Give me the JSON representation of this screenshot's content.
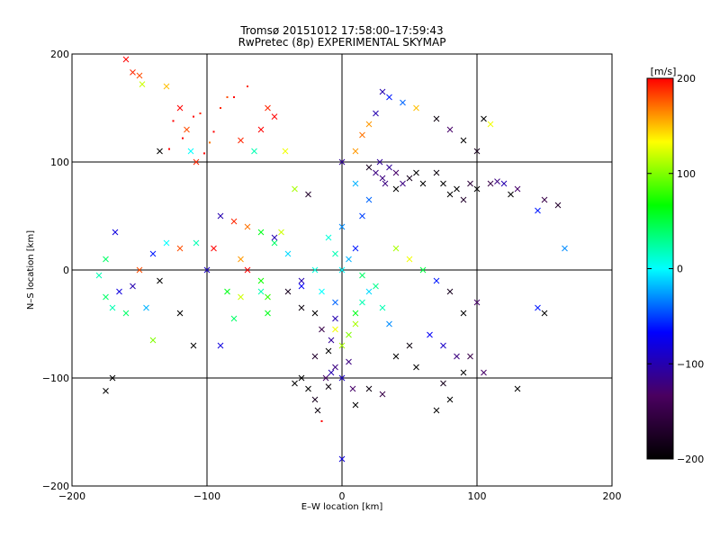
{
  "chart_data": {
    "type": "scatter",
    "title": "Tromsø 20151012  17:58:00–17:59:43",
    "subtitle": "RwPretec (8p) EXPERIMENTAL SKYMAP",
    "xlabel": "E–W location [km]",
    "ylabel": "N–S location [km]",
    "xlim": [
      -200,
      200
    ],
    "ylim": [
      -200,
      200
    ],
    "x_ticks": [
      -200,
      -100,
      0,
      100,
      200
    ],
    "y_ticks": [
      -200,
      -100,
      0,
      100,
      200
    ],
    "grid": true,
    "colorbar": {
      "label": "[m/s]",
      "range": [
        -200,
        200
      ],
      "ticks": [
        200,
        100,
        0,
        -100,
        -200
      ],
      "colormap": [
        "#000000",
        "#4a0060",
        "#0000ff",
        "#00ffff",
        "#00ff00",
        "#ffff00",
        "#ff0000"
      ]
    },
    "points": [
      [
        -160,
        195,
        200,
        "x"
      ],
      [
        -155,
        183,
        190,
        "x"
      ],
      [
        -150,
        180,
        180,
        "x"
      ],
      [
        -148,
        172,
        120,
        "x"
      ],
      [
        -130,
        170,
        150,
        "x"
      ],
      [
        -120,
        150,
        200,
        "x"
      ],
      [
        -115,
        130,
        180,
        "x"
      ],
      [
        -112,
        110,
        0,
        "x"
      ],
      [
        -108,
        100,
        190,
        "x"
      ],
      [
        -135,
        110,
        -200,
        "x"
      ],
      [
        -105,
        145,
        190,
        "."
      ],
      [
        -98,
        118,
        170,
        "."
      ],
      [
        -125,
        138,
        200,
        "."
      ],
      [
        -118,
        122,
        200,
        "."
      ],
      [
        -110,
        142,
        200,
        "."
      ],
      [
        -102,
        108,
        200,
        "."
      ],
      [
        -128,
        112,
        200,
        "."
      ],
      [
        -95,
        128,
        200,
        "."
      ],
      [
        -90,
        150,
        190,
        "."
      ],
      [
        -85,
        160,
        180,
        "."
      ],
      [
        -75,
        120,
        190,
        "x"
      ],
      [
        -60,
        130,
        200,
        "x"
      ],
      [
        -55,
        150,
        190,
        "x"
      ],
      [
        -50,
        142,
        200,
        "x"
      ],
      [
        -42,
        110,
        130,
        "x"
      ],
      [
        -35,
        75,
        110,
        "x"
      ],
      [
        -25,
        70,
        -170,
        "x"
      ],
      [
        -65,
        110,
        20,
        "x"
      ],
      [
        -80,
        160,
        200,
        "."
      ],
      [
        -70,
        170,
        190,
        "."
      ],
      [
        -90,
        50,
        -100,
        "x"
      ],
      [
        -80,
        45,
        190,
        "x"
      ],
      [
        -70,
        40,
        170,
        "x"
      ],
      [
        -60,
        35,
        60,
        "x"
      ],
      [
        -50,
        25,
        40,
        "x"
      ],
      [
        -40,
        15,
        -10,
        "x"
      ],
      [
        -45,
        35,
        120,
        "x"
      ],
      [
        -95,
        20,
        200,
        "x"
      ],
      [
        -100,
        0,
        -90,
        "x"
      ],
      [
        -108,
        25,
        20,
        "x"
      ],
      [
        -120,
        20,
        180,
        "x"
      ],
      [
        -130,
        25,
        0,
        "x"
      ],
      [
        -140,
        15,
        -60,
        "x"
      ],
      [
        -150,
        0,
        180,
        "x"
      ],
      [
        -155,
        -15,
        -100,
        "x"
      ],
      [
        -165,
        -20,
        -80,
        "x"
      ],
      [
        -175,
        10,
        40,
        "x"
      ],
      [
        -168,
        35,
        -80,
        "x"
      ],
      [
        -180,
        -5,
        20,
        "x"
      ],
      [
        -175,
        -25,
        40,
        "x"
      ],
      [
        -170,
        -35,
        20,
        "x"
      ],
      [
        -160,
        -40,
        40,
        "x"
      ],
      [
        -145,
        -35,
        -20,
        "x"
      ],
      [
        -140,
        -65,
        100,
        "x"
      ],
      [
        -120,
        -40,
        -200,
        "x"
      ],
      [
        -110,
        -70,
        -200,
        "x"
      ],
      [
        -90,
        -70,
        -80,
        "x"
      ],
      [
        -75,
        -25,
        120,
        "x"
      ],
      [
        -80,
        -45,
        40,
        "x"
      ],
      [
        -170,
        -100,
        -200,
        "x"
      ],
      [
        -175,
        -112,
        -200,
        "x"
      ],
      [
        -135,
        -10,
        -200,
        "x"
      ],
      [
        -60,
        -20,
        20,
        "x"
      ],
      [
        -55,
        -40,
        60,
        "x"
      ],
      [
        -30,
        -10,
        -100,
        "x"
      ],
      [
        -20,
        -40,
        -200,
        "x"
      ],
      [
        -15,
        -55,
        -150,
        "x"
      ],
      [
        -10,
        -75,
        -200,
        "x"
      ],
      [
        -5,
        -90,
        -120,
        "x"
      ],
      [
        -30,
        -100,
        -200,
        "x"
      ],
      [
        -25,
        -110,
        -200,
        "x"
      ],
      [
        -35,
        -105,
        -200,
        "x"
      ],
      [
        -20,
        -120,
        -180,
        "x"
      ],
      [
        -12,
        -100,
        -130,
        "x"
      ],
      [
        -10,
        -108,
        -190,
        "x"
      ],
      [
        -8,
        -95,
        -100,
        "x"
      ],
      [
        0,
        -100,
        -90,
        "x"
      ],
      [
        8,
        -110,
        -130,
        "x"
      ],
      [
        -18,
        -130,
        -190,
        "x"
      ],
      [
        -15,
        -140,
        200,
        "."
      ],
      [
        10,
        -125,
        -200,
        "x"
      ],
      [
        20,
        -110,
        -190,
        "x"
      ],
      [
        30,
        -115,
        -150,
        "x"
      ],
      [
        40,
        -80,
        -200,
        "x"
      ],
      [
        50,
        -70,
        -190,
        "x"
      ],
      [
        55,
        -90,
        -200,
        "x"
      ],
      [
        70,
        -130,
        -200,
        "x"
      ],
      [
        75,
        -105,
        -180,
        "x"
      ],
      [
        80,
        -120,
        -200,
        "x"
      ],
      [
        90,
        -95,
        -200,
        "x"
      ],
      [
        95,
        -80,
        -150,
        "x"
      ],
      [
        105,
        -95,
        -130,
        "x"
      ],
      [
        130,
        -110,
        -200,
        "x"
      ],
      [
        150,
        -40,
        -200,
        "x"
      ],
      [
        145,
        -35,
        -60,
        "x"
      ],
      [
        0,
        -175,
        -80,
        "x"
      ],
      [
        10,
        -50,
        110,
        "x"
      ],
      [
        5,
        -60,
        100,
        "x"
      ],
      [
        0,
        -70,
        110,
        "x"
      ],
      [
        -5,
        -55,
        130,
        "x"
      ],
      [
        10,
        -40,
        60,
        "x"
      ],
      [
        15,
        -30,
        20,
        "x"
      ],
      [
        20,
        -20,
        -10,
        "x"
      ],
      [
        -5,
        -30,
        -40,
        "x"
      ],
      [
        -15,
        -20,
        0,
        "x"
      ],
      [
        0,
        0,
        0,
        "x"
      ],
      [
        5,
        10,
        -20,
        "x"
      ],
      [
        -5,
        15,
        20,
        "x"
      ],
      [
        10,
        20,
        -60,
        "x"
      ],
      [
        -10,
        30,
        10,
        "x"
      ],
      [
        0,
        40,
        -30,
        "x"
      ],
      [
        15,
        50,
        -50,
        "x"
      ],
      [
        20,
        65,
        -40,
        "x"
      ],
      [
        10,
        80,
        -20,
        "x"
      ],
      [
        0,
        100,
        -110,
        "x"
      ],
      [
        20,
        95,
        -180,
        "x"
      ],
      [
        25,
        90,
        -120,
        "x"
      ],
      [
        30,
        85,
        -120,
        "x"
      ],
      [
        35,
        95,
        -110,
        "x"
      ],
      [
        40,
        90,
        -130,
        "x"
      ],
      [
        32,
        80,
        -120,
        "x"
      ],
      [
        28,
        100,
        -110,
        "x"
      ],
      [
        45,
        80,
        -120,
        "x"
      ],
      [
        40,
        75,
        -200,
        "x"
      ],
      [
        50,
        85,
        -180,
        "x"
      ],
      [
        55,
        90,
        -200,
        "x"
      ],
      [
        60,
        80,
        -200,
        "x"
      ],
      [
        70,
        90,
        -190,
        "x"
      ],
      [
        75,
        80,
        -200,
        "x"
      ],
      [
        80,
        70,
        -200,
        "x"
      ],
      [
        85,
        75,
        -200,
        "x"
      ],
      [
        90,
        65,
        -170,
        "x"
      ],
      [
        95,
        80,
        -160,
        "x"
      ],
      [
        100,
        75,
        -200,
        "x"
      ],
      [
        110,
        80,
        -150,
        "x"
      ],
      [
        115,
        82,
        -120,
        "x"
      ],
      [
        120,
        80,
        -100,
        "x"
      ],
      [
        125,
        70,
        -200,
        "x"
      ],
      [
        130,
        75,
        -130,
        "x"
      ],
      [
        145,
        55,
        -60,
        "x"
      ],
      [
        165,
        20,
        -30,
        "x"
      ],
      [
        150,
        65,
        -150,
        "x"
      ],
      [
        160,
        60,
        -170,
        "x"
      ],
      [
        25,
        145,
        -100,
        "x"
      ],
      [
        20,
        135,
        160,
        "x"
      ],
      [
        15,
        125,
        170,
        "x"
      ],
      [
        10,
        110,
        160,
        "x"
      ],
      [
        30,
        165,
        -100,
        "x"
      ],
      [
        35,
        160,
        -60,
        "x"
      ],
      [
        45,
        155,
        -40,
        "x"
      ],
      [
        55,
        150,
        150,
        "x"
      ],
      [
        70,
        140,
        -190,
        "x"
      ],
      [
        80,
        130,
        -130,
        "x"
      ],
      [
        90,
        120,
        -200,
        "x"
      ],
      [
        100,
        110,
        -180,
        "x"
      ],
      [
        105,
        140,
        -200,
        "x"
      ],
      [
        110,
        135,
        130,
        "x"
      ],
      [
        -50,
        30,
        -100,
        "x"
      ],
      [
        -40,
        -20,
        -180,
        "x"
      ],
      [
        -30,
        -35,
        -190,
        "x"
      ],
      [
        -20,
        -80,
        -170,
        "x"
      ],
      [
        -55,
        -25,
        80,
        "x"
      ],
      [
        -60,
        -10,
        70,
        "x"
      ],
      [
        -70,
        0,
        200,
        "x"
      ],
      [
        -75,
        10,
        160,
        "x"
      ],
      [
        40,
        20,
        110,
        "x"
      ],
      [
        50,
        10,
        130,
        "x"
      ],
      [
        60,
        0,
        50,
        "x"
      ],
      [
        70,
        -10,
        -60,
        "x"
      ],
      [
        80,
        -20,
        -180,
        "x"
      ],
      [
        90,
        -40,
        -200,
        "x"
      ],
      [
        100,
        -30,
        -130,
        "x"
      ],
      [
        85,
        -80,
        -120,
        "x"
      ],
      [
        75,
        -70,
        -90,
        "x"
      ],
      [
        65,
        -60,
        -70,
        "x"
      ],
      [
        -85,
        -20,
        60,
        "x"
      ],
      [
        -30,
        -15,
        -70,
        "x"
      ],
      [
        -20,
        0,
        10,
        "x"
      ],
      [
        15,
        -5,
        40,
        "x"
      ],
      [
        25,
        -15,
        30,
        "x"
      ],
      [
        30,
        -35,
        20,
        "x"
      ],
      [
        35,
        -50,
        -30,
        "x"
      ],
      [
        -5,
        -45,
        -100,
        "x"
      ],
      [
        -8,
        -65,
        -110,
        "x"
      ],
      [
        5,
        -85,
        -120,
        "x"
      ]
    ]
  }
}
